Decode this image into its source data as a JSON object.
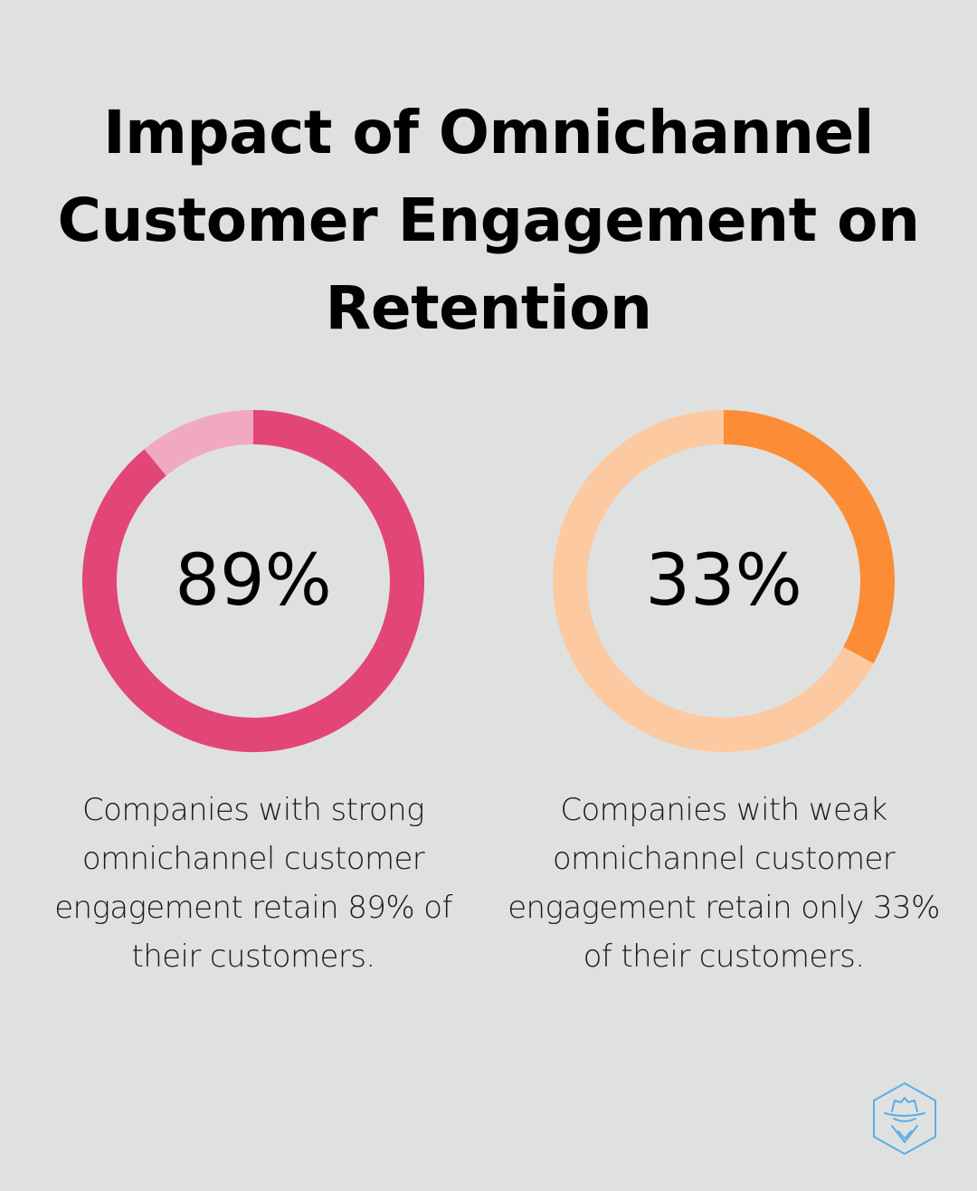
{
  "title": "Impact of Omnichannel Customer Engagement on Retention",
  "colors": {
    "background": "#dfe1e0",
    "pink_fill": "#e24677",
    "pink_track": "#f0a9c0",
    "orange_fill": "#fc8c35",
    "orange_track": "#fdc9a0",
    "logo": "#5aaee6"
  },
  "logo_icon": "spy-hat-icon",
  "chart_data": [
    {
      "type": "pie",
      "value": 89,
      "label": "89%",
      "caption": "Companies with strong omnichannel customer engagement retain 89% of their customers."
    },
    {
      "type": "pie",
      "value": 33,
      "label": "33%",
      "caption": "Companies with weak omnichannel customer engagement retain only 33% of their customers."
    }
  ]
}
